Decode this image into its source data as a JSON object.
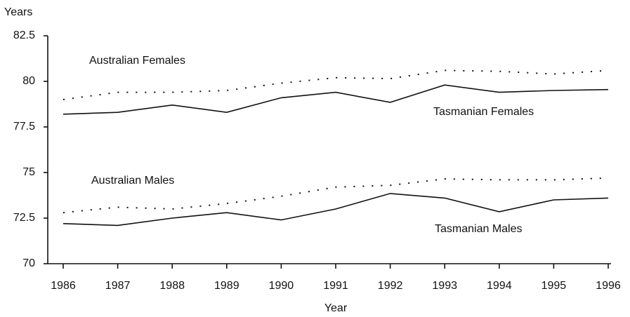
{
  "chart_data": {
    "type": "line",
    "y_label": "Years",
    "x_label": "Year",
    "x": [
      1986,
      1987,
      1988,
      1989,
      1990,
      1991,
      1992,
      1993,
      1994,
      1995,
      1996
    ],
    "xlim": [
      1986,
      1996
    ],
    "xticks": [
      1986,
      1987,
      1988,
      1989,
      1990,
      1991,
      1992,
      1993,
      1994,
      1995,
      1996
    ],
    "ylim": [
      70,
      82.5
    ],
    "yticks": [
      70,
      72.5,
      75,
      77.5,
      80,
      82.5
    ],
    "series": [
      {
        "name": "Australian Females",
        "color": "#111111",
        "style": "dotted",
        "values": [
          79.0,
          79.4,
          79.4,
          79.5,
          79.9,
          80.2,
          80.15,
          80.6,
          80.55,
          80.4,
          80.6
        ]
      },
      {
        "name": "Tasmanian Females",
        "color": "#111111",
        "style": "solid",
        "values": [
          78.2,
          78.3,
          78.7,
          78.3,
          79.1,
          79.4,
          78.85,
          79.8,
          79.4,
          79.5,
          79.55
        ]
      },
      {
        "name": "Australian Males",
        "color": "#111111",
        "style": "dotted",
        "values": [
          72.8,
          73.1,
          73.0,
          73.3,
          73.7,
          74.2,
          74.3,
          74.65,
          74.6,
          74.6,
          74.7
        ]
      },
      {
        "name": "Tasmanian Males",
        "color": "#111111",
        "style": "solid",
        "values": [
          72.2,
          72.1,
          72.5,
          72.8,
          72.4,
          73.0,
          73.85,
          73.6,
          72.85,
          73.5,
          73.6
        ]
      }
    ]
  }
}
